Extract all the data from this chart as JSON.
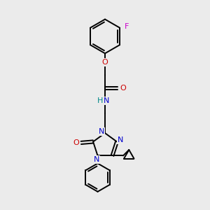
{
  "bg_color": "#ebebeb",
  "bond_color": "#000000",
  "N_color": "#0000cc",
  "O_color": "#cc0000",
  "F_color": "#cc00cc",
  "H_color": "#008888",
  "line_width": 1.4,
  "figsize": [
    3.0,
    3.0
  ],
  "dpi": 100,
  "xlim": [
    0,
    10
  ],
  "ylim": [
    0,
    10
  ]
}
